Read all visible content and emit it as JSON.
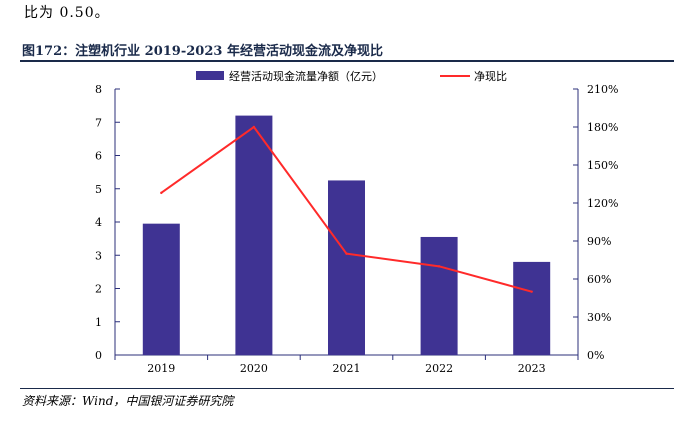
{
  "intro_text": "比为 0.50。",
  "figure_title": "图172：注塑机行业 2019-2023 年经营活动现金流及净现比",
  "source_note": "资料来源：Wind，中国银河证券研究院",
  "colors": {
    "bar": "#3F3393",
    "line": "#FF2A2A",
    "axis": "#2B2F7A"
  },
  "chart_data": {
    "type": "bar+line",
    "categories": [
      "2019",
      "2020",
      "2021",
      "2022",
      "2023"
    ],
    "series": [
      {
        "name": "经营活动现金流量净额（亿元）",
        "type": "bar",
        "axis": "left",
        "values": [
          3.95,
          7.2,
          5.25,
          3.55,
          2.8
        ]
      },
      {
        "name": "净现比",
        "type": "line",
        "axis": "right",
        "values": [
          128,
          180,
          80,
          70,
          50
        ]
      }
    ],
    "left_axis": {
      "min": 0,
      "max": 8,
      "ticks": [
        "0",
        "1",
        "2",
        "3",
        "4",
        "5",
        "6",
        "7",
        "8"
      ]
    },
    "right_axis": {
      "min": 0,
      "max": 210,
      "unit": "%",
      "ticks": [
        "0%",
        "30%",
        "60%",
        "90%",
        "120%",
        "150%",
        "180%",
        "210%"
      ]
    },
    "legend_position": "top-center"
  }
}
